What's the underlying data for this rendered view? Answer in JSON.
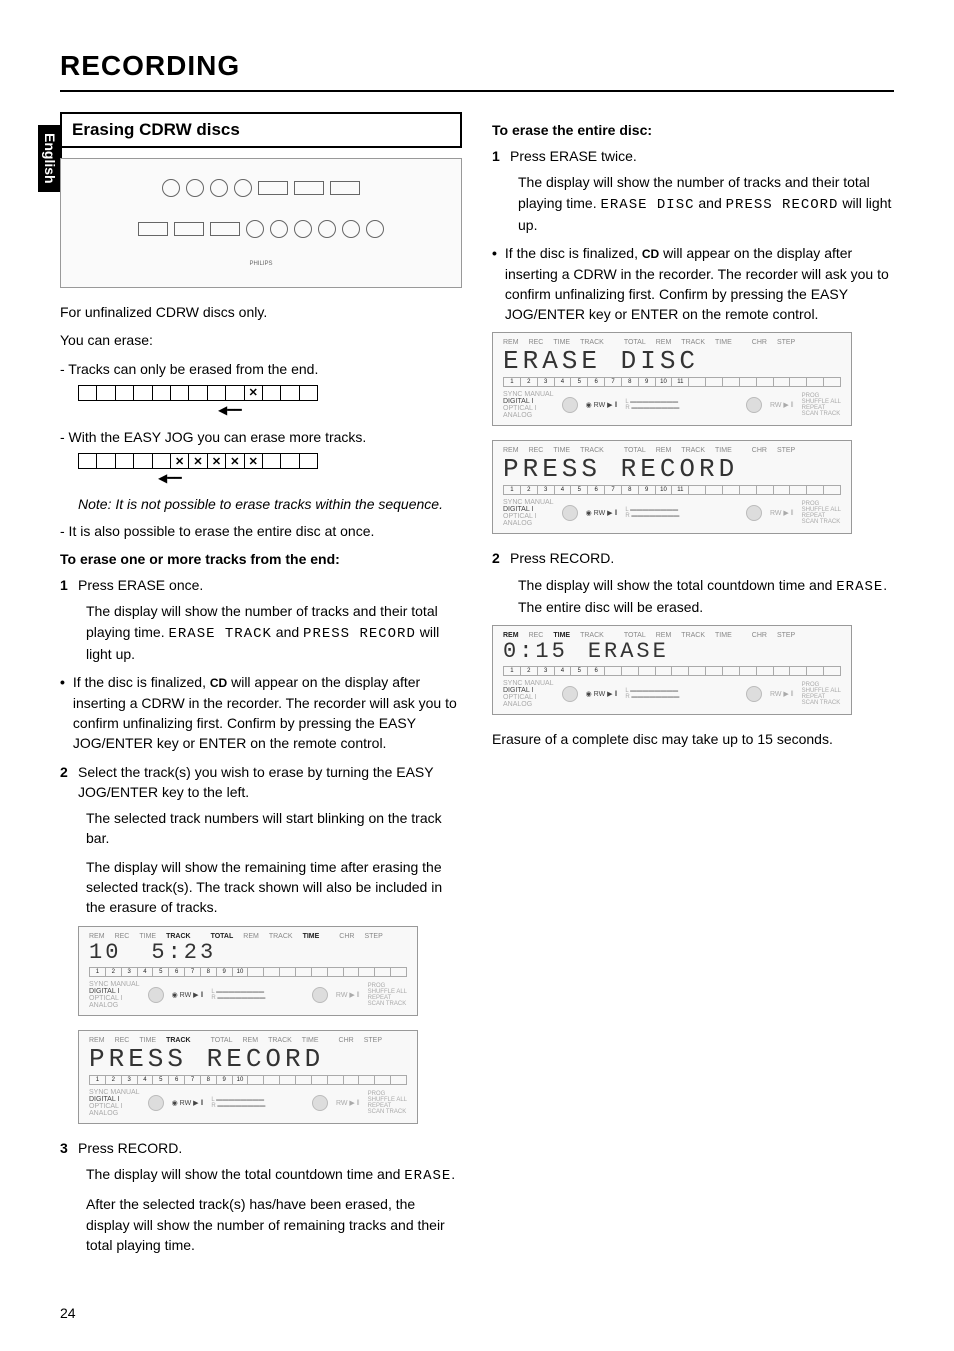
{
  "page": {
    "title": "RECORDING",
    "language_tab": "English",
    "page_number": "24"
  },
  "left": {
    "section_title": "Erasing CDRW discs",
    "intro1": "For unfinalized CDRW discs only.",
    "intro2": "You can erase:",
    "bullet1": "- Tracks can only be erased from the end.",
    "trackbar1": [
      "",
      "",
      "",
      "",
      "",
      "",
      "",
      "",
      "",
      "✕",
      "",
      "",
      ""
    ],
    "bullet2": "- With the EASY JOG you can erase more tracks.",
    "trackbar2": [
      "",
      "",
      "",
      "",
      "",
      "✕",
      "✕",
      "✕",
      "✕",
      "✕",
      "",
      "",
      ""
    ],
    "note": "Note: It is not possible to erase tracks within the sequence.",
    "bullet3": "- It is also possible to erase the entire disc at once.",
    "sub1": "To erase one or more tracks from the end:",
    "step1_num": "1",
    "step1_text": "Press ERASE once.",
    "step1_indent": "The display will show the number of tracks and their total playing time. ",
    "step1_lcd1": "ERASE TRACK",
    "step1_mid": " and ",
    "step1_lcd2": "PRESS RECORD",
    "step1_tail": " will light up.",
    "bulletA": "If the disc is finalized, ",
    "bulletA_cd": "CD",
    "bulletA_tail": " will appear on the display after inserting a CDRW in the recorder. The recorder will ask you to confirm unfinalizing first. Confirm by pressing the EASY JOG/ENTER key or ENTER on the remote control.",
    "step2_num": "2",
    "step2_text": "Select the track(s) you wish to erase by turning the EASY JOG/ENTER key to the left.",
    "step2_indent1": "The selected track numbers will start blinking on the track bar.",
    "step2_indent2": "The display will show the remaining time after erasing the selected track(s). The track shown will also be included in the erasure of tracks.",
    "panel1": {
      "labels": [
        "REM",
        "REC",
        "TIME",
        "TRACK",
        "",
        "TOTAL",
        "REM",
        "TRACK",
        "TIME",
        "",
        "CHR",
        "STEP"
      ],
      "active": [
        3,
        5,
        8
      ],
      "seg_left": "10",
      "seg_right": "5:23",
      "mini_on": 10,
      "bottom_left": [
        "SYNC",
        "MANUAL"
      ],
      "digital": "DIGITAL I",
      "sub": [
        "OPTICAL I",
        "ANALOG"
      ],
      "rw": "RW",
      "right": [
        "PROG",
        "SHUFFLE",
        "ALL",
        "REPEAT",
        "SCAN",
        "TRACK"
      ]
    },
    "panel2": {
      "labels": [
        "REM",
        "REC",
        "TIME",
        "TRACK",
        "",
        "TOTAL",
        "REM",
        "TRACK",
        "TIME",
        "",
        "CHR",
        "STEP"
      ],
      "active": [
        3
      ],
      "seg": "PRESS  RECORD",
      "mini_on": 10,
      "rw": "RW"
    },
    "step3_num": "3",
    "step3_text": "Press RECORD.",
    "step3_indent1": "The display will show the total countdown time and ",
    "step3_lcd": "ERASE",
    "step3_indent1_tail": ".",
    "step3_indent2": "After the selected track(s) has/have been erased, the display will show the number of remaining tracks and their total playing time."
  },
  "right": {
    "sub": "To erase the entire disc:",
    "step1_num": "1",
    "step1_text": "Press ERASE twice.",
    "step1_indent": "The display will show the number of tracks and their total playing time. ",
    "step1_lcd1": "ERASE DISC",
    "step1_mid": " and ",
    "step1_lcd2": "PRESS RECORD",
    "step1_tail": " will light up.",
    "bulletA": "If the disc is finalized, ",
    "bulletA_cd": "CD",
    "bulletA_tail": " will appear on the display after inserting a CDRW in the recorder. The recorder will ask you to confirm unfinalizing first. Confirm by pressing the EASY JOG/ENTER key or ENTER on the remote control.",
    "panel1": {
      "seg": "ERASE  DISC",
      "mini_on": 11,
      "rw": "RW"
    },
    "panel2": {
      "seg": "PRESS  RECORD",
      "mini_on": 11,
      "rw": "RW"
    },
    "step2_num": "2",
    "step2_text": "Press RECORD.",
    "step2_indent": "The display will show the total countdown time and ",
    "step2_lcd": "ERASE",
    "step2_tail": ". The entire disc will be erased.",
    "panel3": {
      "labels": [
        "REM",
        "REC",
        "TIME",
        "TRACK",
        "",
        "TOTAL",
        "REM",
        "TRACK",
        "TIME",
        "",
        "CHR",
        "STEP"
      ],
      "active": [
        0,
        2
      ],
      "seg_left": "0:15",
      "seg_right": "ERASE",
      "mini_on": 6,
      "rw": "RW"
    },
    "closing": "Erasure of a complete disc may take up to 15 seconds."
  }
}
